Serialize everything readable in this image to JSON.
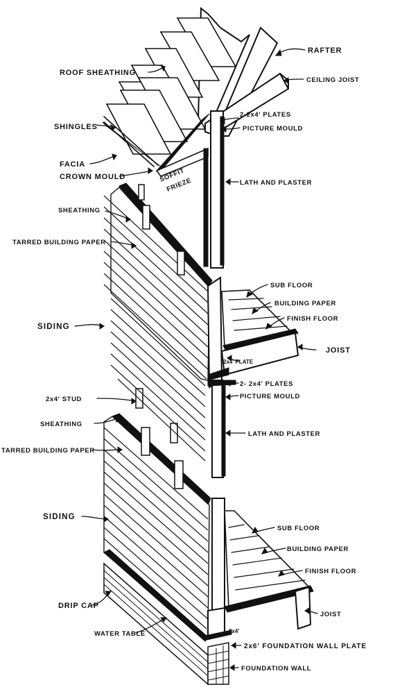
{
  "labels": {
    "rafter": "RAFTER",
    "roof_sheathing": "ROOF SHEATHING",
    "ceiling_joist": "CEILING JOIST",
    "shingles": "SHINGLES",
    "plates_top": "2-2x4' PLATES",
    "picture_mould_top": "PICTURE MOULD",
    "facia": "FACIA",
    "crown_mould": "CROWN MOULD",
    "soffit": "SOFFIT",
    "frieze": "FRIEZE",
    "lath_plaster_top": "LATH AND PLASTER",
    "sheathing_upper": "SHEATHING",
    "tarred_paper_upper": "TARRED BUILDING PAPER",
    "sub_floor_upper": "SUB FLOOR",
    "building_paper_upper": "BUILDING PAPER",
    "siding_upper": "SIDING",
    "finish_floor_upper": "FINISH FLOOR",
    "joist_upper": "JOIST",
    "plate_2x4": "2x4' PLATE",
    "plates_mid": "2- 2x4' PLATES",
    "stud": "2x4' STUD",
    "picture_mould_mid": "PICTURE MOULD",
    "sheathing_lower": "SHEATHING",
    "lath_plaster_mid": "LATH AND PLASTER",
    "tarred_paper_lower": "TARRED BUILDING PAPER",
    "siding_lower": "SIDING",
    "sub_floor_lower": "SUB FLOOR",
    "building_paper_lower": "BUILDING PAPER",
    "finish_floor_lower": "FINISH FLOOR",
    "drip_cap": "DRIP CAP",
    "joist_lower": "JOIST",
    "water_table": "WATER TABLE",
    "stud_2x4_short": "2x4'",
    "foundation_plate": "2x6' FOUNDATION WALL PLATE",
    "foundation_wall": "FOUNDATION WALL"
  },
  "icons": {
    "pointer": "arrow-icon"
  }
}
